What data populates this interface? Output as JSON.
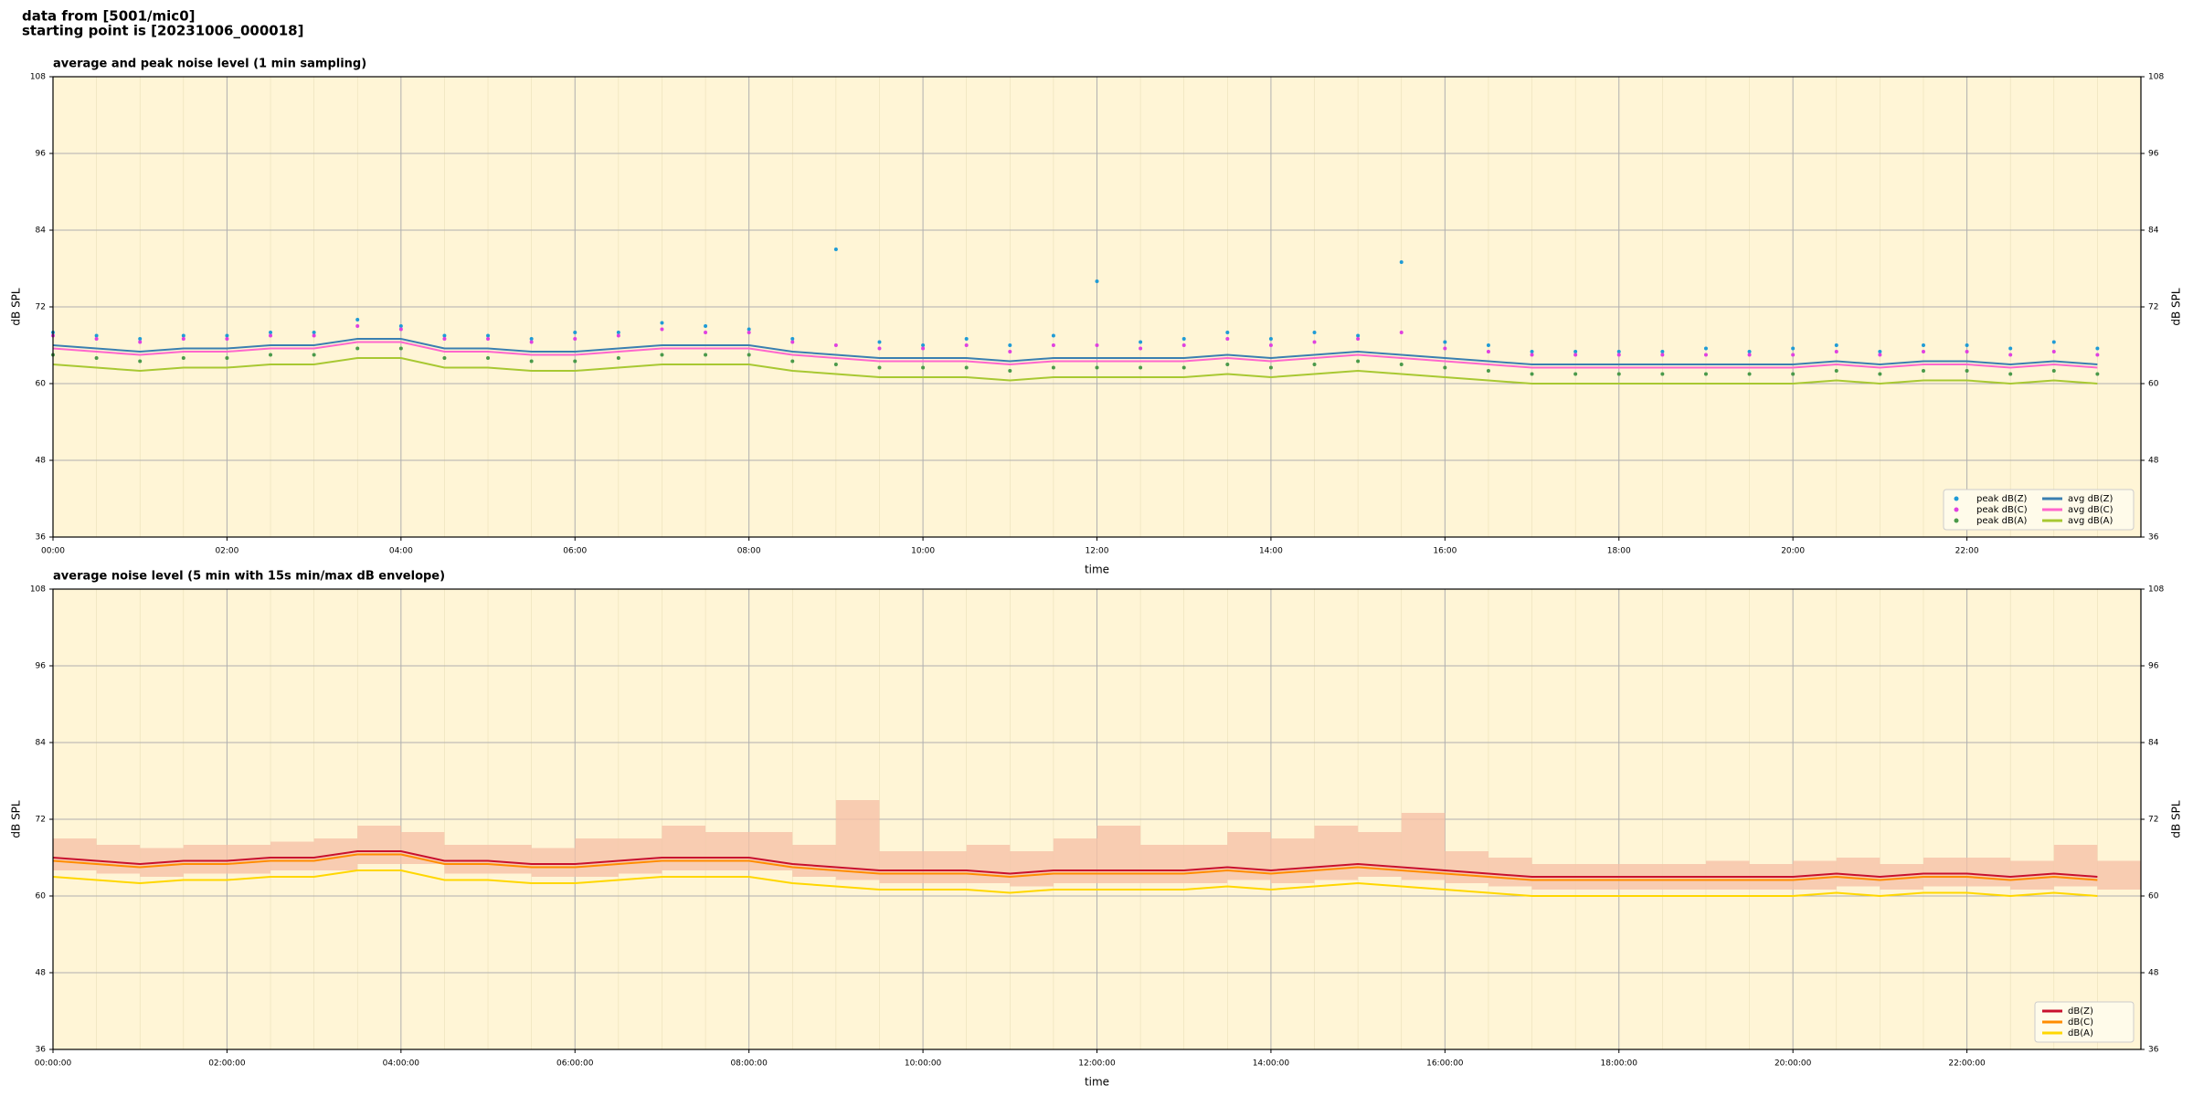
{
  "header": {
    "line1": "data from [5001/mic0]",
    "line2": "starting point is [20231006_000018]"
  },
  "chart_data": [
    {
      "type": "line",
      "title": "average and peak noise level (1 min sampling)",
      "xlabel": "time",
      "ylabel": "dB SPL",
      "x": [
        0,
        0.5,
        1,
        1.5,
        2,
        2.5,
        3,
        3.5,
        4,
        4.5,
        5,
        5.5,
        6,
        6.5,
        7,
        7.5,
        8,
        8.5,
        9,
        9.5,
        10,
        10.5,
        11,
        11.5,
        12,
        12.5,
        13,
        13.5,
        14,
        14.5,
        15,
        15.5,
        16,
        16.5,
        17,
        17.5,
        18,
        18.5,
        19,
        19.5,
        20,
        20.5,
        21,
        21.5,
        22,
        22.5,
        23,
        23.5
      ],
      "xlim": [
        0,
        24
      ],
      "xticks": [
        {
          "value": 0,
          "label": "00:00"
        },
        {
          "value": 2,
          "label": "02:00"
        },
        {
          "value": 4,
          "label": "04:00"
        },
        {
          "value": 6,
          "label": "06:00"
        },
        {
          "value": 8,
          "label": "08:00"
        },
        {
          "value": 10,
          "label": "10:00"
        },
        {
          "value": 12,
          "label": "12:00"
        },
        {
          "value": 14,
          "label": "14:00"
        },
        {
          "value": 16,
          "label": "16:00"
        },
        {
          "value": 18,
          "label": "18:00"
        },
        {
          "value": 20,
          "label": "20:00"
        },
        {
          "value": 22,
          "label": "22:00"
        }
      ],
      "ylim": [
        36,
        108
      ],
      "yticks": [
        36,
        48,
        60,
        72,
        84,
        96,
        108
      ],
      "grid": true,
      "legend": "lower right",
      "series": [
        {
          "name": "peak dB(Z)",
          "mark": "dot",
          "color": "#1f9bd6",
          "values": [
            68,
            67.5,
            67,
            67.5,
            67.5,
            68,
            68,
            70,
            69,
            67.5,
            67.5,
            67,
            68,
            68,
            69.5,
            69,
            68.5,
            67,
            81,
            66.5,
            66,
            67,
            66,
            67.5,
            76,
            66.5,
            67,
            68,
            67,
            68,
            67.5,
            79,
            66.5,
            66,
            65,
            65,
            65,
            65,
            65.5,
            65,
            65.5,
            66,
            65,
            66,
            66,
            65.5,
            66.5,
            65.5
          ]
        },
        {
          "name": "peak dB(C)",
          "mark": "dot",
          "color": "#e040e0",
          "values": [
            67.5,
            67,
            66.5,
            67,
            67,
            67.5,
            67.5,
            69,
            68.5,
            67,
            67,
            66.5,
            67,
            67.5,
            68.5,
            68,
            68,
            66.5,
            66,
            65.5,
            65.5,
            66,
            65,
            66,
            66,
            65.5,
            66,
            67,
            66,
            66.5,
            67,
            68,
            65.5,
            65,
            64.5,
            64.5,
            64.5,
            64.5,
            64.5,
            64.5,
            64.5,
            65,
            64.5,
            65,
            65,
            64.5,
            65,
            64.5
          ]
        },
        {
          "name": "peak dB(A)",
          "mark": "dot",
          "color": "#4a9a4a",
          "values": [
            64.5,
            64,
            63.5,
            64,
            64,
            64.5,
            64.5,
            65.5,
            65.5,
            64,
            64,
            63.5,
            63.5,
            64,
            64.5,
            64.5,
            64.5,
            63.5,
            63,
            62.5,
            62.5,
            62.5,
            62,
            62.5,
            62.5,
            62.5,
            62.5,
            63,
            62.5,
            63,
            63.5,
            63,
            62.5,
            62,
            61.5,
            61.5,
            61.5,
            61.5,
            61.5,
            61.5,
            61.5,
            62,
            61.5,
            62,
            62,
            61.5,
            62,
            61.5
          ]
        },
        {
          "name": "avg dB(Z)",
          "mark": "line",
          "color": "#3a7fb0",
          "values": [
            66,
            65.5,
            65,
            65.5,
            65.5,
            66,
            66,
            67,
            67,
            65.5,
            65.5,
            65,
            65,
            65.5,
            66,
            66,
            66,
            65,
            64.5,
            64,
            64,
            64,
            63.5,
            64,
            64,
            64,
            64,
            64.5,
            64,
            64.5,
            65,
            64.5,
            64,
            63.5,
            63,
            63,
            63,
            63,
            63,
            63,
            63,
            63.5,
            63,
            63.5,
            63.5,
            63,
            63.5,
            63
          ]
        },
        {
          "name": "avg dB(C)",
          "mark": "line",
          "color": "#ff66cc",
          "values": [
            65.5,
            65,
            64.5,
            65,
            65,
            65.5,
            65.5,
            66.5,
            66.5,
            65,
            65,
            64.5,
            64.5,
            65,
            65.5,
            65.5,
            65.5,
            64.5,
            64,
            63.5,
            63.5,
            63.5,
            63,
            63.5,
            63.5,
            63.5,
            63.5,
            64,
            63.5,
            64,
            64.5,
            64,
            63.5,
            63,
            62.5,
            62.5,
            62.5,
            62.5,
            62.5,
            62.5,
            62.5,
            63,
            62.5,
            63,
            63,
            62.5,
            63,
            62.5
          ]
        },
        {
          "name": "avg dB(A)",
          "mark": "line",
          "color": "#a8c832",
          "values": [
            63,
            62.5,
            62,
            62.5,
            62.5,
            63,
            63,
            64,
            64,
            62.5,
            62.5,
            62,
            62,
            62.5,
            63,
            63,
            63,
            62,
            61.5,
            61,
            61,
            61,
            60.5,
            61,
            61,
            61,
            61,
            61.5,
            61,
            61.5,
            62,
            61.5,
            61,
            60.5,
            60,
            60,
            60,
            60,
            60,
            60,
            60,
            60.5,
            60,
            60.5,
            60.5,
            60,
            60.5,
            60
          ]
        }
      ]
    },
    {
      "type": "line",
      "title": "average noise level (5 min with 15s min/max dB envelope)",
      "xlabel": "time",
      "ylabel": "dB SPL",
      "x": [
        0,
        0.5,
        1,
        1.5,
        2,
        2.5,
        3,
        3.5,
        4,
        4.5,
        5,
        5.5,
        6,
        6.5,
        7,
        7.5,
        8,
        8.5,
        9,
        9.5,
        10,
        10.5,
        11,
        11.5,
        12,
        12.5,
        13,
        13.5,
        14,
        14.5,
        15,
        15.5,
        16,
        16.5,
        17,
        17.5,
        18,
        18.5,
        19,
        19.5,
        20,
        20.5,
        21,
        21.5,
        22,
        22.5,
        23,
        23.5
      ],
      "xlim": [
        0,
        24
      ],
      "xticks": [
        {
          "value": 0,
          "label": "00:00:00"
        },
        {
          "value": 2,
          "label": "02:00:00"
        },
        {
          "value": 4,
          "label": "04:00:00"
        },
        {
          "value": 6,
          "label": "06:00:00"
        },
        {
          "value": 8,
          "label": "08:00:00"
        },
        {
          "value": 10,
          "label": "10:00:00"
        },
        {
          "value": 12,
          "label": "12:00:00"
        },
        {
          "value": 14,
          "label": "14:00:00"
        },
        {
          "value": 16,
          "label": "16:00:00"
        },
        {
          "value": 18,
          "label": "18:00:00"
        },
        {
          "value": 20,
          "label": "20:00:00"
        },
        {
          "value": 22,
          "label": "22:00:00"
        }
      ],
      "ylim": [
        36,
        108
      ],
      "yticks": [
        36,
        48,
        60,
        72,
        84,
        96,
        108
      ],
      "grid": true,
      "legend": "lower right",
      "envelope": {
        "color": "#f6c2a8",
        "upper": [
          69,
          68,
          67.5,
          68,
          68,
          68.5,
          69,
          71,
          70,
          68,
          68,
          67.5,
          69,
          69,
          71,
          70,
          70,
          68,
          75,
          67,
          67,
          68,
          67,
          69,
          71,
          68,
          68,
          70,
          69,
          71,
          70,
          73,
          67,
          66,
          65,
          65,
          65,
          65,
          65.5,
          65,
          65.5,
          66,
          65,
          66,
          66,
          65.5,
          68,
          65.5
        ],
        "lower": [
          64,
          63.5,
          63,
          63.5,
          63.5,
          64,
          64,
          65,
          65,
          63.5,
          63.5,
          63,
          63,
          63.5,
          64,
          64,
          64,
          63,
          62.5,
          62,
          62,
          62,
          61.5,
          62,
          62,
          62,
          62,
          62.5,
          62,
          62.5,
          63,
          62.5,
          62,
          61.5,
          61,
          61,
          61,
          61,
          61,
          61,
          61,
          61.5,
          61,
          61.5,
          61.5,
          61,
          61.5,
          61
        ]
      },
      "series": [
        {
          "name": "dB(Z)",
          "mark": "line",
          "color": "#c8102e",
          "values": [
            66,
            65.5,
            65,
            65.5,
            65.5,
            66,
            66,
            67,
            67,
            65.5,
            65.5,
            65,
            65,
            65.5,
            66,
            66,
            66,
            65,
            64.5,
            64,
            64,
            64,
            63.5,
            64,
            64,
            64,
            64,
            64.5,
            64,
            64.5,
            65,
            64.5,
            64,
            63.5,
            63,
            63,
            63,
            63,
            63,
            63,
            63,
            63.5,
            63,
            63.5,
            63.5,
            63,
            63.5,
            63
          ]
        },
        {
          "name": "dB(C)",
          "mark": "line",
          "color": "#ff8c00",
          "values": [
            65.5,
            65,
            64.5,
            65,
            65,
            65.5,
            65.5,
            66.5,
            66.5,
            65,
            65,
            64.5,
            64.5,
            65,
            65.5,
            65.5,
            65.5,
            64.5,
            64,
            63.5,
            63.5,
            63.5,
            63,
            63.5,
            63.5,
            63.5,
            63.5,
            64,
            63.5,
            64,
            64.5,
            64,
            63.5,
            63,
            62.5,
            62.5,
            62.5,
            62.5,
            62.5,
            62.5,
            62.5,
            63,
            62.5,
            63,
            63,
            62.5,
            63,
            62.5
          ]
        },
        {
          "name": "dB(A)",
          "mark": "line",
          "color": "#ffd700",
          "values": [
            63,
            62.5,
            62,
            62.5,
            62.5,
            63,
            63,
            64,
            64,
            62.5,
            62.5,
            62,
            62,
            62.5,
            63,
            63,
            63,
            62,
            61.5,
            61,
            61,
            61,
            60.5,
            61,
            61,
            61,
            61,
            61.5,
            61,
            61.5,
            62,
            61.5,
            61,
            60.5,
            60,
            60,
            60,
            60,
            60,
            60,
            60,
            60.5,
            60,
            60.5,
            60.5,
            60,
            60.5,
            60
          ]
        }
      ]
    }
  ]
}
